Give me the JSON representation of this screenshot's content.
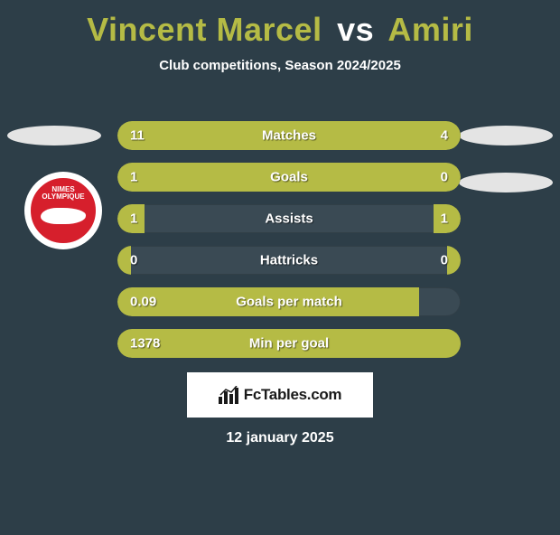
{
  "title": {
    "player1": "Vincent Marcel",
    "vs": "vs",
    "player2": "Amiri"
  },
  "subtitle": "Club competitions, Season 2024/2025",
  "club": {
    "name_line1": "NIMES",
    "name_line2": "OLYMPIQUE",
    "badge_bg": "#d61f2c",
    "badge_fg": "#ffffff"
  },
  "colors": {
    "page_bg": "#2d3e48",
    "accent": "#b5bb45",
    "bar_track": "#3a4a54",
    "text": "#ffffff",
    "ellipse": "#e4e4e4"
  },
  "stats": [
    {
      "label": "Matches",
      "left_val": "11",
      "right_val": "4",
      "left_pct": 65,
      "right_pct": 35
    },
    {
      "label": "Goals",
      "left_val": "1",
      "right_val": "0",
      "left_pct": 70,
      "right_pct": 30
    },
    {
      "label": "Assists",
      "left_val": "1",
      "right_val": "1",
      "left_pct": 8,
      "right_pct": 8
    },
    {
      "label": "Hattricks",
      "left_val": "0",
      "right_val": "0",
      "left_pct": 4,
      "right_pct": 4
    },
    {
      "label": "Goals per match",
      "left_val": "0.09",
      "right_val": "",
      "left_pct": 88,
      "right_pct": 0
    },
    {
      "label": "Min per goal",
      "left_val": "1378",
      "right_val": "",
      "left_pct": 100,
      "right_pct": 0
    }
  ],
  "footer": {
    "brand": "FcTables.com",
    "date": "12 january 2025"
  }
}
